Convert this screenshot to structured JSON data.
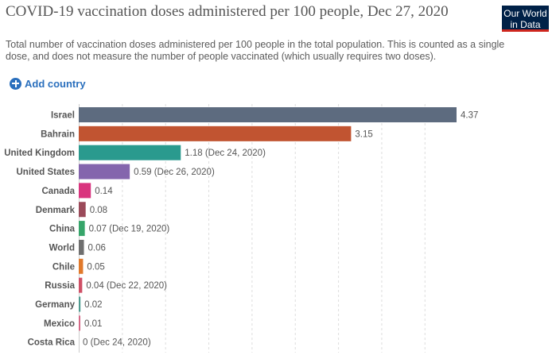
{
  "header": {
    "title": "COVID-19 vaccination doses administered per 100 people, Dec 27, 2020",
    "subtitle": "Total number of vaccination doses administered per 100 people in the total population. This is counted as a single dose, and does not measure the number of people vaccinated (which usually requires two doses).",
    "logo_line1": "Our World",
    "logo_line2": "in Data"
  },
  "controls": {
    "add_country_label": "Add country",
    "add_icon": "plus-circle-icon"
  },
  "colors": {
    "logo_bg": "#002147",
    "logo_accent": "#ce261e",
    "link": "#2a6fbd",
    "grid": "#dddddd"
  },
  "chart_data": {
    "type": "bar",
    "orientation": "horizontal",
    "title": "COVID-19 vaccination doses administered per 100 people, Dec 27, 2020",
    "xlim": [
      0,
      4.37
    ],
    "grid": "vertical dashed",
    "categories": [
      "Israel",
      "Bahrain",
      "United Kingdom",
      "United States",
      "Canada",
      "Denmark",
      "China",
      "World",
      "Chile",
      "Russia",
      "Germany",
      "Mexico",
      "Costa Rica"
    ],
    "values": [
      4.37,
      3.15,
      1.18,
      0.59,
      0.14,
      0.08,
      0.07,
      0.06,
      0.05,
      0.04,
      0.02,
      0.01,
      0
    ],
    "value_labels": [
      "4.37",
      "3.15",
      "1.18 (Dec 24, 2020)",
      "0.59 (Dec 26, 2020)",
      "0.14",
      "0.08",
      "0.07 (Dec 19, 2020)",
      "0.06",
      "0.05",
      "0.04 (Dec 22, 2020)",
      "0.02",
      "0.01",
      "0 (Dec 24, 2020)"
    ],
    "colors": [
      "#5d6b7f",
      "#c15431",
      "#2a9a8e",
      "#8465ad",
      "#d9347e",
      "#9b4a5a",
      "#36a56a",
      "#6f6f6f",
      "#e1792b",
      "#cf5066",
      "#4f9b90",
      "#d46a87",
      "#8a8a8a"
    ]
  }
}
